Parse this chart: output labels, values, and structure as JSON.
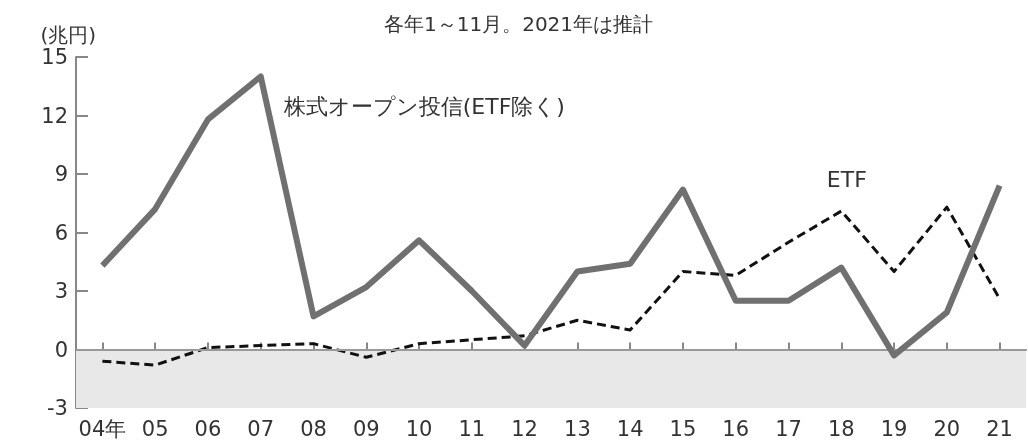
{
  "chart_data": {
    "type": "line",
    "ylabel": "(兆円)",
    "annotations": [
      "各年1～11月。2021年は推計"
    ],
    "categories": [
      "04年",
      "05",
      "06",
      "07",
      "08",
      "09",
      "10",
      "11",
      "12",
      "13",
      "14",
      "15",
      "16",
      "17",
      "18",
      "19",
      "20",
      "21"
    ],
    "series": [
      {
        "name": "株式オープン投信(ETF除く)",
        "color": "#707070",
        "line_style": "solid",
        "values": [
          4.3,
          7.2,
          11.8,
          14.0,
          1.7,
          3.2,
          5.6,
          3.0,
          0.2,
          4.0,
          4.4,
          8.2,
          2.5,
          2.5,
          4.2,
          -0.3,
          1.9,
          8.4
        ]
      },
      {
        "name": "ETF",
        "color": "#111111",
        "line_style": "dashed",
        "values": [
          -0.6,
          -0.8,
          0.1,
          0.2,
          0.3,
          -0.4,
          0.3,
          0.5,
          0.7,
          1.5,
          1.0,
          4.0,
          3.8,
          5.5,
          7.1,
          4.0,
          7.3,
          2.6
        ]
      }
    ],
    "ylim": [
      -3,
      15
    ],
    "yticks": [
      -3,
      0,
      3,
      6,
      9,
      12,
      15
    ],
    "grid": false,
    "legend": false,
    "marker": "none",
    "bands": [
      {
        "axis": "y",
        "from": -3,
        "to": 0,
        "color": "#e8e8e8"
      }
    ],
    "ref_lines": [
      {
        "axis": "y",
        "value": 0,
        "color": "#999999"
      }
    ]
  }
}
